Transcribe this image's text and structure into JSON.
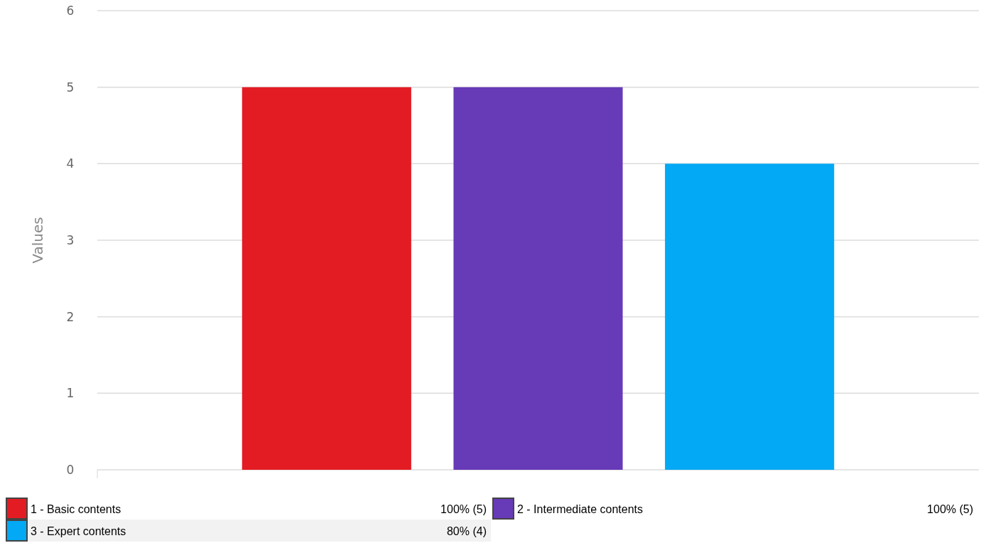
{
  "chart_data": {
    "type": "bar",
    "ylabel": "Values",
    "categories": [
      null
    ],
    "series": [
      {
        "name": "1 - Basic contents",
        "color": "#e31c23",
        "values": [
          5
        ]
      },
      {
        "name": "2 - Intermediate contents",
        "color": "#673ab7",
        "values": [
          5
        ]
      },
      {
        "name": "3 - Expert contents",
        "color": "#03a9f4",
        "values": [
          4
        ]
      }
    ],
    "annotations": [
      "100% (5)",
      "100% (5)",
      "80% (4)"
    ],
    "ylim": [
      0,
      6
    ],
    "yticks": [
      0,
      1,
      2,
      3,
      4,
      5,
      6
    ],
    "grid": "y",
    "legend": "bottom"
  }
}
